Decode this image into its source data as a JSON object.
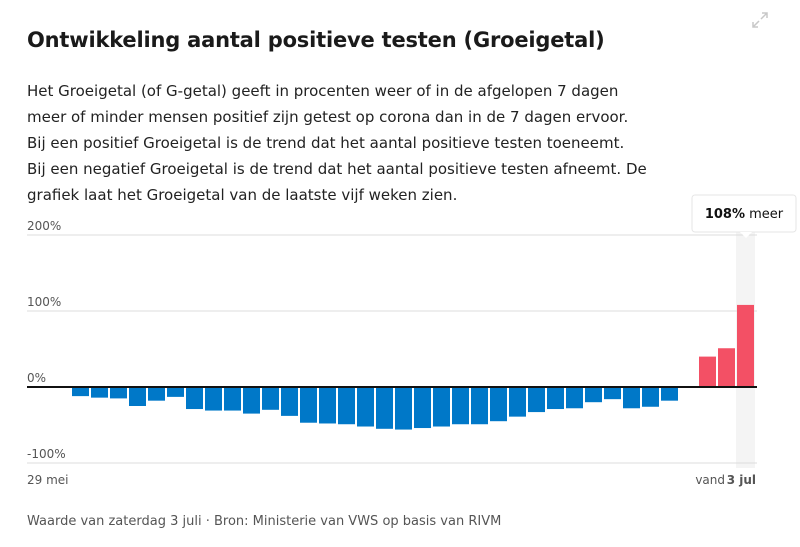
{
  "header": {
    "title": "Ontwikkeling aantal positieve testen (Groeigetal)",
    "description": "Het Groeigetal (of G-getal) geeft in procenten weer of in de afgelopen 7 dagen meer of minder mensen positief zijn getest op corona dan in de 7 dagen ervoor. Bij een positief Groeigetal is de trend dat het aantal positieve testen toeneemt. Bij een negatief Groeigetal is de trend dat het aantal positieve testen afneemt. De grafiek laat het Groeigetal van de laatste vijf weken zien.",
    "expand_icon": "expand-icon"
  },
  "chart_data": {
    "type": "bar",
    "title": "",
    "xlabel": "",
    "ylabel": "",
    "ylim": [
      -100,
      200
    ],
    "yticks": [
      "200%",
      "100%",
      "0%",
      "-100%"
    ],
    "ytick_values": [
      200,
      100,
      0,
      -100
    ],
    "x_start_label": "29 mei",
    "x_end_prefix": "vand",
    "x_end_label": "3 jul",
    "grid": true,
    "colors": {
      "negative": "#0078c8",
      "positive": "#f35065",
      "highlight": "#f4f4f4"
    },
    "values": [
      -12,
      -14,
      -15,
      -25,
      -18,
      -13,
      -29,
      -31,
      -31,
      -35,
      -30,
      -38,
      -47,
      -48,
      -49,
      -52,
      -55,
      -56,
      -54,
      -52,
      -49,
      -49,
      -45,
      -39,
      -33,
      -29,
      -28,
      -20,
      -16,
      -28,
      -26,
      -18,
      0,
      40,
      51,
      108
    ],
    "tooltip": {
      "value": "108%",
      "suffix": "meer"
    }
  },
  "footer": "Waarde van zaterdag 3 juli · Bron: Ministerie van VWS op basis van RIVM"
}
